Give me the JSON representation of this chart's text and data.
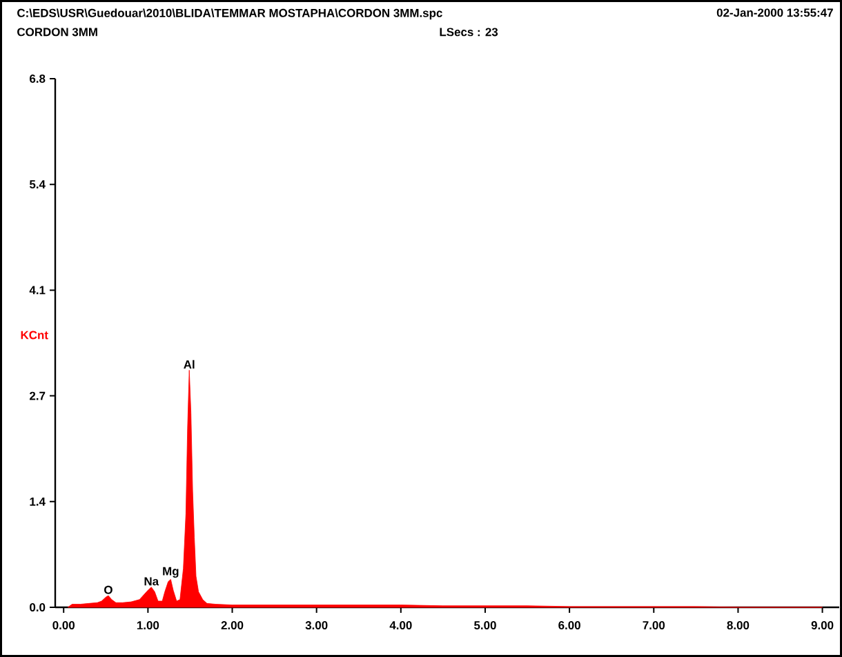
{
  "chart_data": {
    "type": "area",
    "title": "C:\\EDS\\USR\\Guedouar\\2010\\BLIDA\\TEMMAR MOSTAPHA\\CORDON 3MM.spc",
    "ylabel": "KCnt",
    "annotations": [
      "02-Jan-2000 13:55:47",
      "CORDON 3MM",
      "LSecs : 23",
      {
        "text": "O",
        "x": 0.53,
        "y": 0.15
      },
      {
        "text": "Na",
        "x": 1.04,
        "y": 0.26
      },
      {
        "text": "Mg",
        "x": 1.27,
        "y": 0.36
      },
      {
        "text": "Al",
        "x": 1.49,
        "y": 3.05
      }
    ],
    "x": [
      0.05,
      0.1,
      0.2,
      0.3,
      0.4,
      0.45,
      0.5,
      0.53,
      0.57,
      0.62,
      0.7,
      0.8,
      0.9,
      0.95,
      1.0,
      1.04,
      1.08,
      1.12,
      1.17,
      1.2,
      1.24,
      1.27,
      1.3,
      1.34,
      1.38,
      1.42,
      1.45,
      1.47,
      1.49,
      1.51,
      1.53,
      1.55,
      1.57,
      1.6,
      1.65,
      1.7,
      1.8,
      2.0,
      2.5,
      3.0,
      3.5,
      4.0,
      4.5,
      5.0,
      5.5,
      6.0,
      6.5,
      7.0,
      7.5,
      8.0,
      9.0
    ],
    "values": [
      0,
      0.04,
      0.04,
      0.05,
      0.06,
      0.08,
      0.13,
      0.15,
      0.1,
      0.06,
      0.06,
      0.07,
      0.1,
      0.16,
      0.22,
      0.26,
      0.2,
      0.08,
      0.08,
      0.2,
      0.33,
      0.36,
      0.22,
      0.08,
      0.1,
      0.5,
      1.2,
      2.3,
      3.05,
      2.5,
      1.5,
      0.9,
      0.4,
      0.2,
      0.1,
      0.05,
      0.04,
      0.03,
      0.03,
      0.03,
      0.03,
      0.03,
      0.02,
      0.02,
      0.02,
      0.01,
      0.01,
      0.01,
      0.01,
      0,
      0
    ],
    "color": "#ff0000",
    "xlim": [
      -0.1,
      9.2
    ],
    "ylim": [
      0,
      6.8
    ],
    "xticks": [
      {
        "value": 0,
        "label": "0.00"
      },
      {
        "value": 1,
        "label": "1.00"
      },
      {
        "value": 2,
        "label": "2.00"
      },
      {
        "value": 3,
        "label": "3.00"
      },
      {
        "value": 4,
        "label": "4.00"
      },
      {
        "value": 5,
        "label": "5.00"
      },
      {
        "value": 6,
        "label": "6.00"
      },
      {
        "value": 7,
        "label": "7.00"
      },
      {
        "value": 8,
        "label": "8.00"
      },
      {
        "value": 9,
        "label": "9.00"
      }
    ],
    "yticks": [
      {
        "value": 0,
        "label": "0.0"
      },
      {
        "value": 1.36,
        "label": "1.4"
      },
      {
        "value": 2.72,
        "label": "2.7"
      },
      {
        "value": 4.08,
        "label": "4.1"
      },
      {
        "value": 5.44,
        "label": "5.4"
      },
      {
        "value": 6.8,
        "label": "6.8"
      }
    ]
  }
}
